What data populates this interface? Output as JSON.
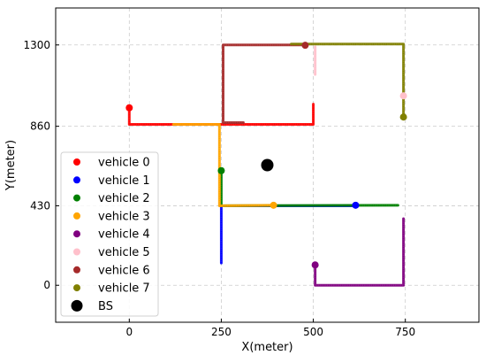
{
  "chart_data": {
    "type": "scatter",
    "title": "",
    "xlabel": "X(meter)",
    "ylabel": "Y(meter)",
    "xlim": [
      -200,
      950
    ],
    "ylim": [
      -200,
      1500
    ],
    "xticks": [
      0,
      250,
      500,
      750
    ],
    "yticks": [
      0,
      430,
      860,
      1300
    ],
    "grid": true,
    "legend_position": "lower-left",
    "series": [
      {
        "name": "vehicle 0",
        "color": "#ff0000",
        "path": [
          [
            0,
            960
          ],
          [
            0,
            870
          ],
          [
            500,
            870
          ],
          [
            500,
            980
          ]
        ],
        "marker": [
          0,
          960
        ]
      },
      {
        "name": "vehicle 1",
        "color": "#0000ff",
        "path": [
          [
            250,
            120
          ],
          [
            250,
            430
          ],
          [
            610,
            430
          ]
        ],
        "marker": [
          615,
          433
        ]
      },
      {
        "name": "vehicle 2",
        "color": "#008000",
        "path": [
          [
            250,
            620
          ],
          [
            250,
            430
          ],
          [
            730,
            433
          ]
        ],
        "marker": [
          250,
          620
        ]
      },
      {
        "name": "vehicle 3",
        "color": "#ffa500",
        "path": [
          [
            120,
            870
          ],
          [
            245,
            870
          ],
          [
            245,
            430
          ],
          [
            390,
            433
          ]
        ],
        "marker": [
          392,
          433
        ]
      },
      {
        "name": "vehicle 4",
        "color": "#800080",
        "path": [
          [
            505,
            110
          ],
          [
            505,
            0
          ],
          [
            745,
            0
          ],
          [
            745,
            360
          ]
        ],
        "marker": [
          505,
          110
        ]
      },
      {
        "name": "vehicle 5",
        "color": "#ffc0cb",
        "path": [
          [
            505,
            1140
          ],
          [
            505,
            1290
          ]
        ],
        "marker": [
          745,
          1025
        ]
      },
      {
        "name": "vehicle 6",
        "color": "#a52a2a",
        "path": [
          [
            310,
            880
          ],
          [
            255,
            880
          ],
          [
            255,
            1300
          ],
          [
            480,
            1300
          ]
        ],
        "marker": [
          478,
          1298
        ]
      },
      {
        "name": "vehicle 7",
        "color": "#808000",
        "path": [
          [
            440,
            1305
          ],
          [
            745,
            1305
          ],
          [
            745,
            910
          ]
        ],
        "marker": [
          745,
          910
        ]
      },
      {
        "name": "BS",
        "color": "#000000",
        "path": [],
        "marker": [
          375,
          650
        ]
      }
    ]
  }
}
